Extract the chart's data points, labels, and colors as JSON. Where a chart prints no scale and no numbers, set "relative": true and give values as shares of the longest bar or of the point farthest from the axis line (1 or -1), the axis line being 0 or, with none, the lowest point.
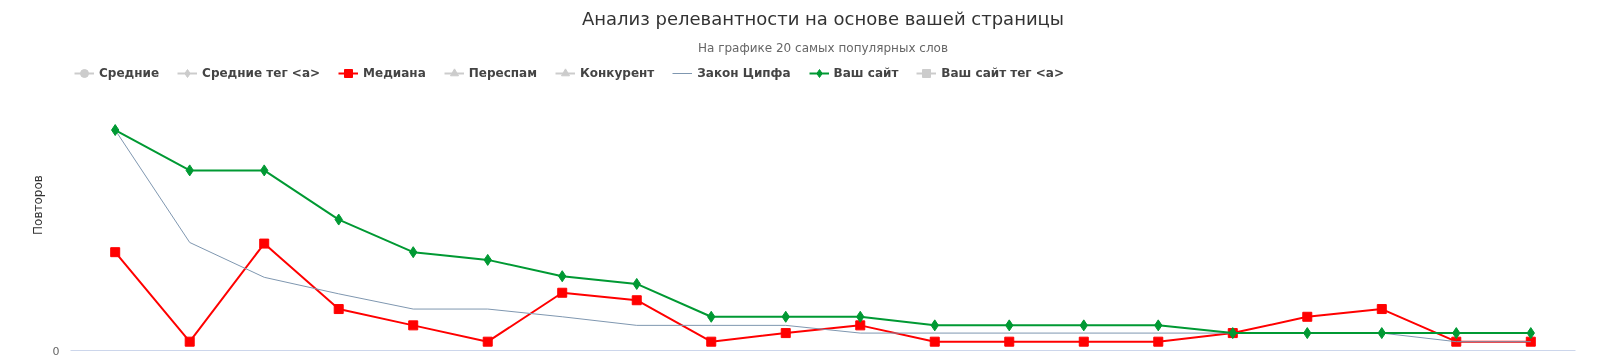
{
  "chart_data": {
    "type": "line",
    "title": "Анализ релевантности на основе вашей страницы",
    "subtitle": "На графике 20 самых популярных слов",
    "ylabel": "Повторов",
    "relative": true,
    "legend": "top",
    "line_style": "solid",
    "categories": [
      null,
      null,
      null,
      null,
      null,
      null,
      null,
      null,
      null,
      null,
      null,
      null,
      null,
      null,
      null,
      null,
      null,
      null,
      null,
      null
    ],
    "annotations": [
      "0"
    ],
    "series": [
      {
        "name": "Средние",
        "color": "#cccccc",
        "marker": "circle",
        "values": [
          null,
          null,
          null,
          null,
          null,
          null,
          null,
          null,
          null,
          null,
          null,
          null,
          null,
          null,
          null,
          null,
          null,
          null,
          null,
          null
        ]
      },
      {
        "name": "Средние тег <a>",
        "color": "#cccccc",
        "marker": "diamond",
        "values": [
          null,
          null,
          null,
          null,
          null,
          null,
          null,
          null,
          null,
          null,
          null,
          null,
          null,
          null,
          null,
          null,
          null,
          null,
          null,
          null
        ]
      },
      {
        "name": "Медиана",
        "color": "#ff0000",
        "marker": "square",
        "values": [
          0.446,
          0.04,
          0.485,
          0.188,
          0.114,
          0.04,
          0.262,
          0.228,
          0.04,
          0.079,
          0.114,
          0.04,
          0.04,
          0.04,
          0.04,
          0.079,
          0.153,
          0.188,
          0.04,
          0.04
        ]
      },
      {
        "name": "Переспам",
        "color": "#cccccc",
        "marker": "triangle",
        "values": [
          null,
          null,
          null,
          null,
          null,
          null,
          null,
          null,
          null,
          null,
          null,
          null,
          null,
          null,
          null,
          null,
          null,
          null,
          null,
          null
        ]
      },
      {
        "name": "Конкурент",
        "color": "#cccccc",
        "marker": "triangle",
        "values": [
          null,
          null,
          null,
          null,
          null,
          null,
          null,
          null,
          null,
          null,
          null,
          null,
          null,
          null,
          null,
          null,
          null,
          null,
          null,
          null
        ]
      },
      {
        "name": "Закон Ципфа",
        "color": "#7f97b0",
        "marker": "none",
        "values": [
          1,
          0.49,
          0.332,
          0.257,
          0.188,
          0.188,
          0.153,
          0.114,
          0.114,
          0.114,
          0.079,
          0.079,
          0.079,
          0.079,
          0.079,
          0.079,
          0.079,
          0.079,
          0.04,
          0.04
        ]
      },
      {
        "name": "Ваш сайт",
        "color": "#009933",
        "marker": "diamond",
        "values": [
          1,
          0.817,
          0.817,
          0.594,
          0.446,
          0.411,
          0.337,
          0.302,
          0.153,
          0.153,
          0.153,
          0.114,
          0.114,
          0.114,
          0.114,
          0.079,
          0.079,
          0.079,
          0.079,
          0.079
        ]
      },
      {
        "name": "Ваш сайт тег <a>",
        "color": "#cccccc",
        "marker": "square",
        "values": [
          null,
          null,
          null,
          null,
          null,
          null,
          null,
          null,
          null,
          null,
          null,
          null,
          null,
          null,
          null,
          null,
          null,
          null,
          null,
          null
        ]
      }
    ]
  }
}
